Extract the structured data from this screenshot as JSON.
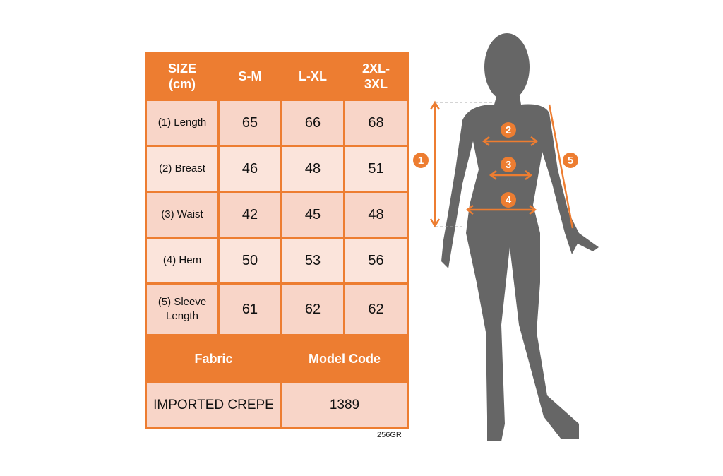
{
  "table": {
    "header": [
      "SIZE\n(cm)",
      "S-M",
      "L-XL",
      "2XL-\n3XL"
    ],
    "rows": [
      {
        "label": "(1) Length",
        "values": [
          "65",
          "66",
          "68"
        ]
      },
      {
        "label": "(2) Breast",
        "values": [
          "46",
          "48",
          "51"
        ]
      },
      {
        "label": "(3) Waist",
        "values": [
          "42",
          "45",
          "48"
        ]
      },
      {
        "label": "(4) Hem",
        "values": [
          "50",
          "53",
          "56"
        ]
      },
      {
        "label": "(5) Sleeve\nLength",
        "values": [
          "61",
          "62",
          "62"
        ]
      }
    ],
    "footer_headers": [
      "Fabric",
      "Model Code"
    ],
    "footer_values": [
      "IMPORTED CREPE",
      "1389"
    ]
  },
  "product_code": "256GR",
  "figure": {
    "markers": [
      "1",
      "2",
      "3",
      "4",
      "5"
    ]
  },
  "colors": {
    "accent": "#ED7D31",
    "cell_dark": "#F8D5C8",
    "cell_light": "#FBE4DB",
    "silhouette": "#666666"
  }
}
